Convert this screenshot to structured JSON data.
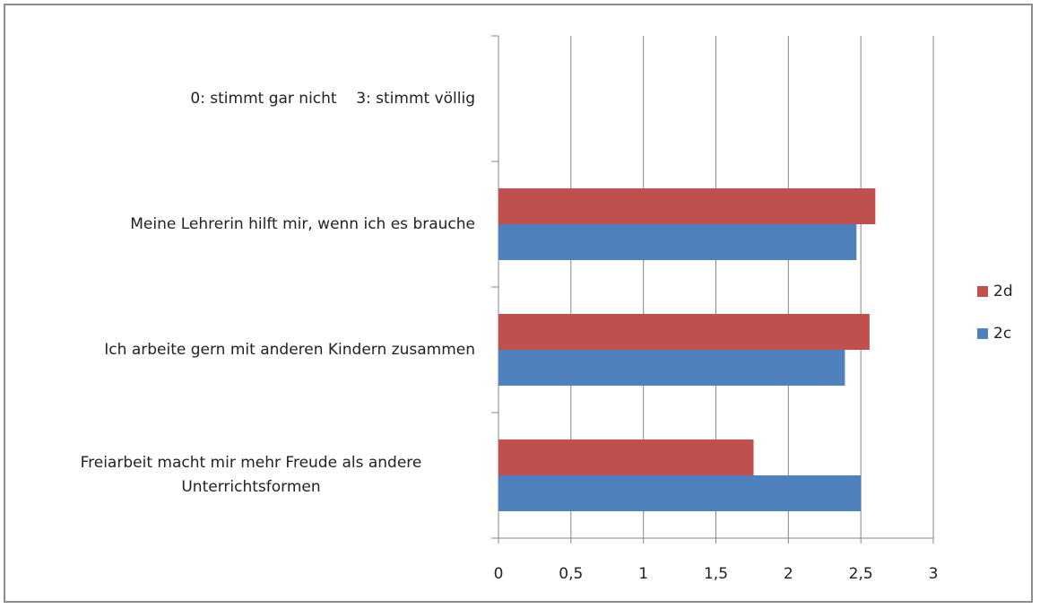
{
  "chart_data": {
    "type": "barh",
    "categories": [
      "Freiarbeit macht mir mehr Freude als andere Unterrichtsformen",
      "Ich arbeite gern mit anderen Kindern zusammen",
      "Meine Lehrerin hilft mir, wenn ich es brauche",
      "0: stimmt gar nicht    3: stimmt völlig"
    ],
    "series": [
      {
        "name": "2c",
        "color": "#4f81bd",
        "values": [
          2.5,
          2.39,
          2.47,
          null
        ]
      },
      {
        "name": "2d",
        "color": "#c0504d",
        "values": [
          1.76,
          2.56,
          2.6,
          null
        ]
      }
    ],
    "xlim": [
      0,
      3
    ],
    "xticks": [
      0,
      {
        "value": 0.5,
        "label": "0,5"
      },
      1,
      {
        "value": 1.5,
        "label": "1,5"
      },
      2,
      {
        "value": 2.5,
        "label": "2,5"
      },
      3
    ],
    "grid": true,
    "legend": "right"
  }
}
